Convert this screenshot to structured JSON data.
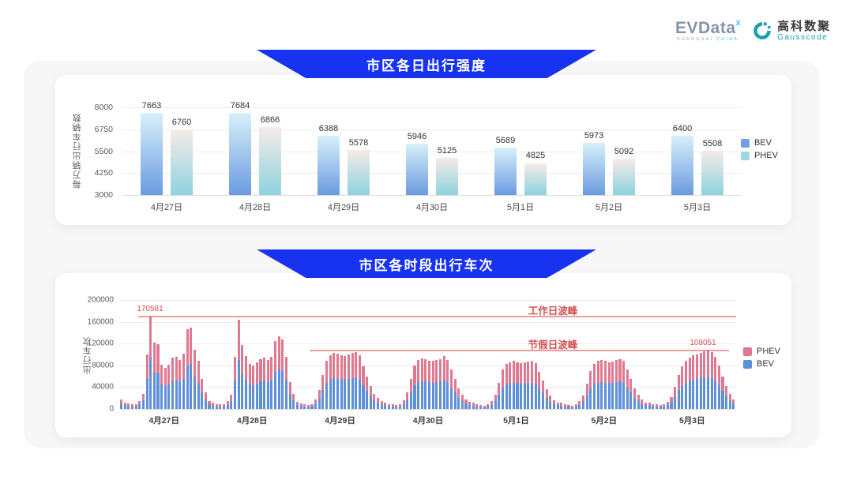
{
  "header": {
    "evdata_name": "EVData",
    "evdata_sup": "x",
    "evdata_tagline_1": "SHANGHAI",
    "evdata_tagline_2": "CHINA",
    "gausscode_cn": "高科数聚",
    "gausscode_en": "Gausscode"
  },
  "colors": {
    "banner_blue": "#1733f0",
    "panel_gray": "#f7f7f8",
    "bev_solid": "#5e8fd9",
    "phev_solid": "#e0798f",
    "bev_grad_top": "#d7f0fa",
    "bev_grad_bottom": "#6b9be0",
    "phev_grad_top": "#f6ebe7",
    "phev_grad_bottom": "#8ed3df",
    "legend_bev_chart1": "#6fa0e8",
    "legend_phev_chart1": "#9fd8e2",
    "annotation_red_line": "#e57e7e",
    "annotation_red_text": "#d44f4f",
    "evdata_accent": "#3ec8f0",
    "gausscode_teal": "#1b9fb0"
  },
  "chart_data": [
    {
      "type": "bar",
      "banner": "市区各日出行强度",
      "ylabel": "每万辆出行车辆数",
      "y_ticks": [
        8000,
        6750,
        5500,
        4250,
        3000
      ],
      "ylim": [
        3000,
        8000
      ],
      "grid": true,
      "legend_position": "right",
      "categories": [
        "4月27日",
        "4月28日",
        "4月29日",
        "4月30日",
        "5月1日",
        "5月2日",
        "5月3日"
      ],
      "series": [
        {
          "name": "BEV",
          "values": [
            7663,
            7684,
            6388,
            5946,
            5689,
            5973,
            6400
          ]
        },
        {
          "name": "PHEV",
          "values": [
            6760,
            6866,
            5578,
            5125,
            4825,
            5092,
            5508
          ]
        }
      ]
    },
    {
      "type": "bar",
      "subtype": "stacked-hourly",
      "banner": "市区各时段出行车次",
      "ylabel": "出行车次",
      "y_ticks": [
        200000,
        160000,
        120000,
        80000,
        40000,
        0
      ],
      "ylim": [
        0,
        200000
      ],
      "grid": true,
      "legend_position": "right",
      "legend_order": [
        "PHEV",
        "BEV"
      ],
      "annotations": {
        "workday_peak": {
          "label": "工作日波峰",
          "value": 170581,
          "value_label": "170581"
        },
        "holiday_peak": {
          "label": "节假日波峰",
          "value": 108051,
          "value_label": "108051"
        }
      },
      "days": [
        {
          "label": "4月27日",
          "bev": [
            9400,
            6600,
            5500,
            4400,
            4400,
            8300,
            15400,
            55000,
            93800,
            67100,
            65500,
            44600,
            41800,
            44600,
            51700,
            52800,
            49500,
            55600,
            80300,
            82500,
            59400,
            48400,
            30300,
            16500
          ],
          "phev": [
            7600,
            5400,
            4500,
            3600,
            3600,
            6700,
            12600,
            45000,
            76781,
            54900,
            53500,
            36400,
            34200,
            36400,
            42300,
            43200,
            40500,
            45400,
            65700,
            67500,
            48600,
            39600,
            24700,
            13500
          ]
        },
        {
          "label": "4月28日",
          "bev": [
            8300,
            6100,
            5000,
            4400,
            4400,
            7700,
            14300,
            52300,
            90200,
            64400,
            53400,
            45700,
            44000,
            46800,
            50600,
            51700,
            49500,
            52800,
            68800,
            73200,
            69900,
            52300,
            27500,
            15400
          ],
          "phev": [
            6700,
            4900,
            4000,
            3600,
            3600,
            6300,
            11700,
            42700,
            73800,
            52600,
            43600,
            37300,
            36000,
            38200,
            41400,
            42300,
            40500,
            43200,
            56200,
            59800,
            57100,
            42700,
            22500,
            12600
          ]
        },
        {
          "label": "4月29日",
          "bev": [
            7200,
            5500,
            4400,
            3900,
            5000,
            9900,
            19300,
            34100,
            48400,
            54500,
            56700,
            55600,
            54500,
            53400,
            55000,
            56700,
            57800,
            53900,
            42900,
            33000,
            23100,
            15400,
            11000,
            7700
          ],
          "phev": [
            5800,
            4500,
            3600,
            3100,
            4000,
            8100,
            15700,
            27900,
            39600,
            44500,
            46300,
            45400,
            44500,
            43600,
            45000,
            46300,
            47200,
            44100,
            35100,
            27000,
            18900,
            12600,
            9000,
            6300
          ]
        },
        {
          "label": "4月30日",
          "bev": [
            6600,
            5000,
            4400,
            3900,
            4400,
            8800,
            16500,
            30300,
            44000,
            49500,
            51200,
            50100,
            49000,
            48400,
            49500,
            50600,
            53400,
            49500,
            39600,
            30300,
            20900,
            14300,
            9900,
            7200
          ],
          "phev": [
            5400,
            4000,
            3600,
            3100,
            3600,
            7200,
            13500,
            24700,
            36000,
            40500,
            41800,
            40900,
            40000,
            39600,
            40500,
            41400,
            43600,
            40500,
            32400,
            24700,
            17100,
            11700,
            8100,
            5800
          ]
        },
        {
          "label": "5月1日",
          "bev": [
            6100,
            4400,
            3900,
            3300,
            4400,
            7700,
            14300,
            26400,
            39600,
            45100,
            47300,
            48400,
            47300,
            46200,
            46800,
            47900,
            48400,
            46200,
            37400,
            28600,
            19800,
            13200,
            8800,
            6600
          ],
          "phev": [
            4900,
            3600,
            3100,
            2700,
            3600,
            6300,
            11700,
            21600,
            32400,
            36900,
            38700,
            39600,
            38700,
            37800,
            38200,
            39100,
            39600,
            37800,
            30600,
            23400,
            16200,
            10800,
            7200,
            5400
          ]
        },
        {
          "label": "5月2日",
          "bev": [
            6100,
            4400,
            3900,
            3300,
            4400,
            7700,
            13800,
            25300,
            38500,
            45100,
            48400,
            49500,
            48400,
            47300,
            47900,
            49500,
            50600,
            48400,
            39600,
            30300,
            20900,
            14300,
            9400,
            6600
          ],
          "phev": [
            4900,
            3600,
            3100,
            2700,
            3600,
            6300,
            11200,
            20700,
            31500,
            36900,
            39600,
            40500,
            39600,
            38700,
            39100,
            40500,
            41400,
            39600,
            32400,
            24700,
            17100,
            11700,
            7600,
            5400
          ]
        },
        {
          "label": "5月3日",
          "bev": [
            6600,
            5000,
            4400,
            3900,
            4400,
            7200,
            12100,
            22000,
            34100,
            42900,
            48400,
            51700,
            53900,
            55000,
            56700,
            58300,
            59400,
            57200,
            52800,
            44000,
            33000,
            23100,
            15400,
            9900
          ],
          "phev": [
            5400,
            4000,
            3600,
            3100,
            3600,
            5800,
            9900,
            18000,
            27900,
            35100,
            39600,
            42300,
            44100,
            45000,
            46300,
            47700,
            48651,
            46800,
            43200,
            36000,
            27000,
            18900,
            12600,
            8100
          ]
        }
      ]
    }
  ]
}
